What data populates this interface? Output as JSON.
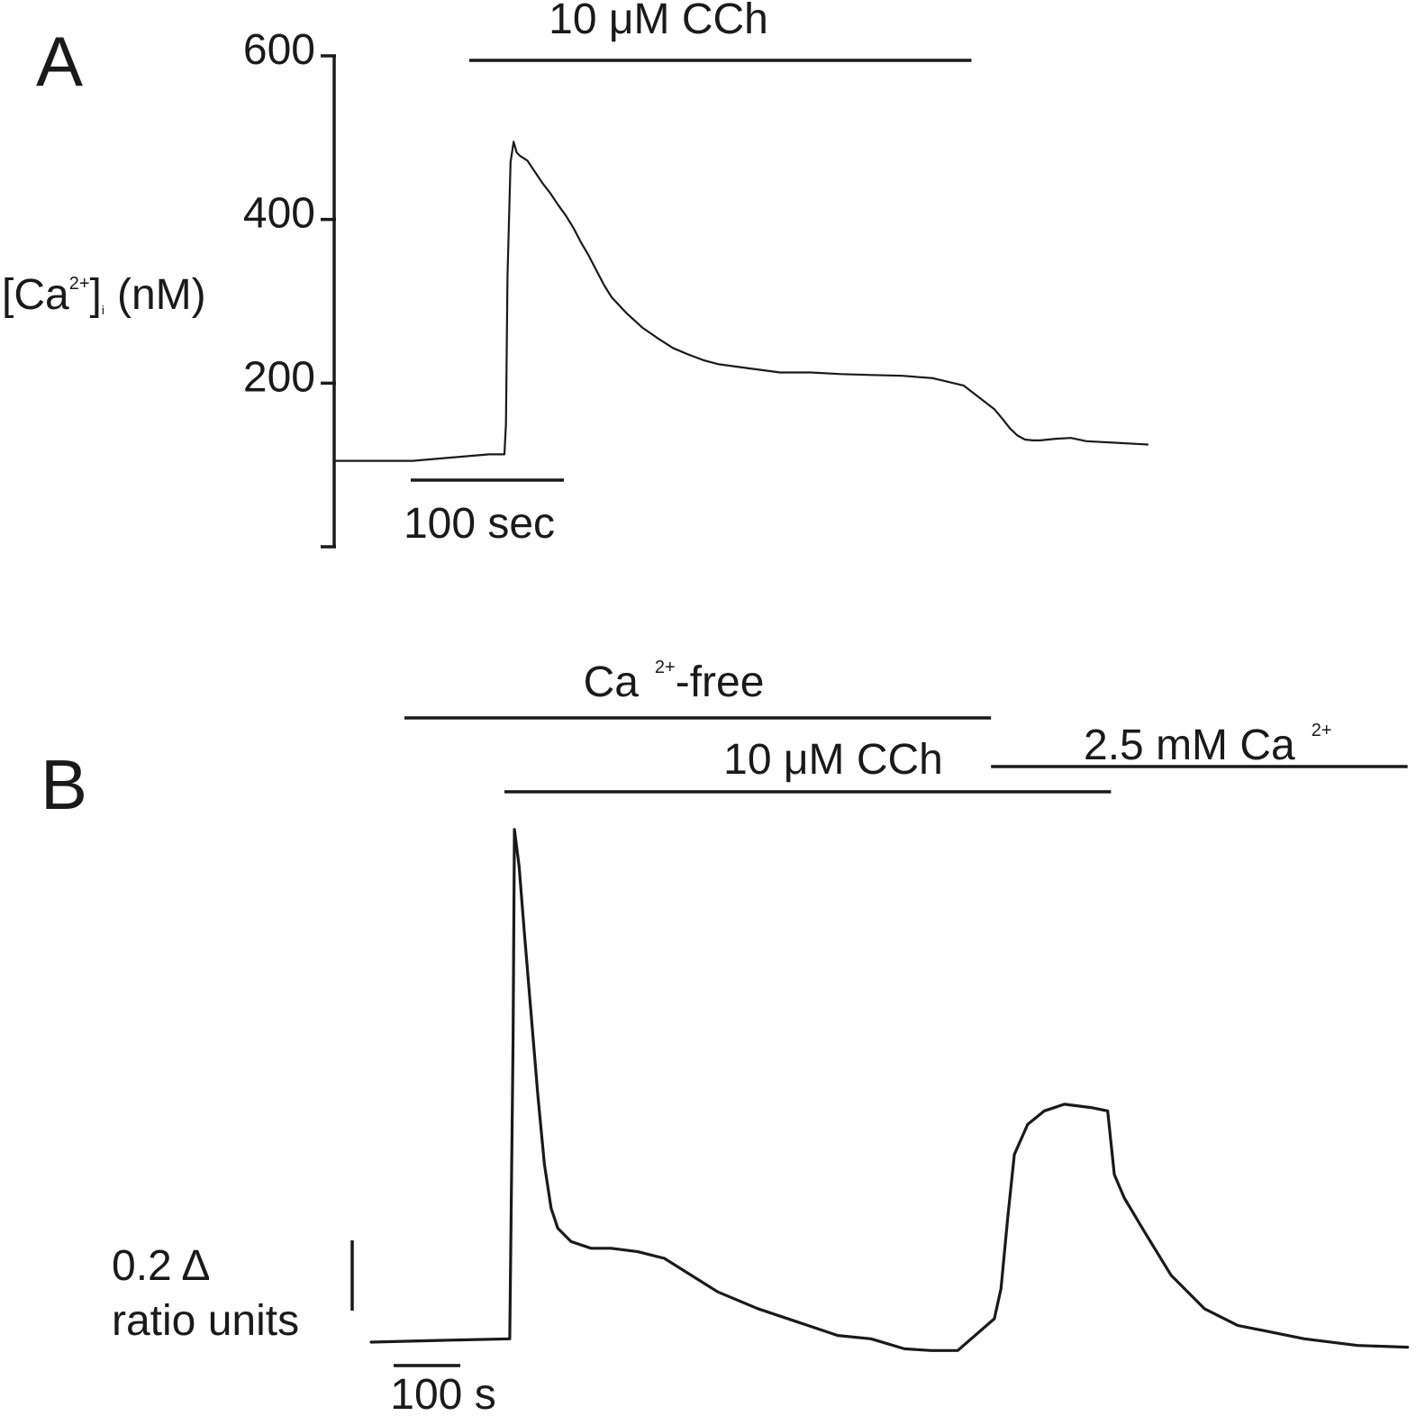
{
  "chart_data": [
    {
      "type": "line",
      "panel_label": "A",
      "ylabel": {
        "main": "[Ca",
        "superscript": "2+",
        "close": "]",
        "subscript": "i",
        "unit": "(nM)"
      },
      "yticks": [
        200,
        400,
        600
      ],
      "ylim": [
        0,
        600
      ],
      "treatment_bars": [
        {
          "label": "10 μM CCh",
          "x_start": 37,
          "x_end": 365
        }
      ],
      "scale_bar": {
        "label": "100 sec",
        "seconds": 100
      },
      "x_range_seconds": [
        -50,
        480
      ],
      "series": [
        {
          "x": [
            -50,
            0,
            50,
            60,
            61,
            62,
            64,
            66,
            68,
            70,
            75,
            80,
            85,
            90,
            95,
            100,
            105,
            110,
            115,
            120,
            125,
            130,
            140,
            150,
            160,
            170,
            180,
            190,
            200,
            220,
            240,
            260,
            280,
            300,
            320,
            340,
            360,
            380,
            385,
            390,
            395,
            400,
            405,
            410,
            420,
            430,
            440,
            460,
            480
          ],
          "y": [
            105,
            105,
            113,
            113,
            150,
            330,
            470,
            495,
            482,
            478,
            472,
            458,
            444,
            432,
            418,
            405,
            390,
            372,
            356,
            338,
            320,
            305,
            285,
            268,
            255,
            243,
            235,
            228,
            223,
            218,
            213,
            213,
            211,
            210,
            209,
            206,
            197,
            168,
            157,
            145,
            136,
            131,
            130,
            130,
            132,
            133,
            129,
            127,
            125
          ]
        }
      ]
    },
    {
      "type": "line",
      "panel_label": "B",
      "scale_bar_y": {
        "value_label": "0.2 Δ",
        "unit_label": "ratio units"
      },
      "scale_bar": {
        "label": "100 s",
        "seconds": 100
      },
      "treatment_bars": [
        {
          "label": "Ca 2+-free",
          "label_main": "Ca",
          "label_sup": "2+",
          "label_tail": "-free",
          "x_start": 50,
          "x_end": 930
        },
        {
          "label": "10 μM CCh",
          "x_start": 200,
          "x_end": 1110
        },
        {
          "label": "2.5 mM Ca 2+",
          "label_main": "2.5 mM Ca",
          "label_sup": "2+",
          "x_start": 930,
          "x_end": 1555
        }
      ],
      "x_range_seconds": [
        0,
        1555
      ],
      "ylim": [
        0,
        1.6
      ],
      "series": [
        {
          "x": [
            0,
            100,
            208,
            213,
            215,
            222,
            230,
            240,
            250,
            260,
            270,
            280,
            300,
            330,
            360,
            400,
            440,
            480,
            520,
            580,
            640,
            700,
            750,
            800,
            840,
            880,
            935,
            945,
            955,
            965,
            985,
            1010,
            1040,
            1080,
            1105,
            1115,
            1130,
            1160,
            1200,
            1250,
            1300,
            1350,
            1400,
            1480,
            1555
          ],
          "y": [
            0.0,
            0.005,
            0.01,
            0.9,
            1.53,
            1.42,
            1.22,
            0.98,
            0.74,
            0.53,
            0.4,
            0.34,
            0.3,
            0.28,
            0.28,
            0.27,
            0.25,
            0.2,
            0.15,
            0.1,
            0.06,
            0.02,
            0.01,
            -0.02,
            -0.025,
            -0.025,
            0.07,
            0.16,
            0.37,
            0.56,
            0.65,
            0.69,
            0.71,
            0.7,
            0.69,
            0.5,
            0.43,
            0.33,
            0.2,
            0.1,
            0.05,
            0.03,
            0.01,
            -0.01,
            -0.015
          ]
        }
      ]
    }
  ]
}
